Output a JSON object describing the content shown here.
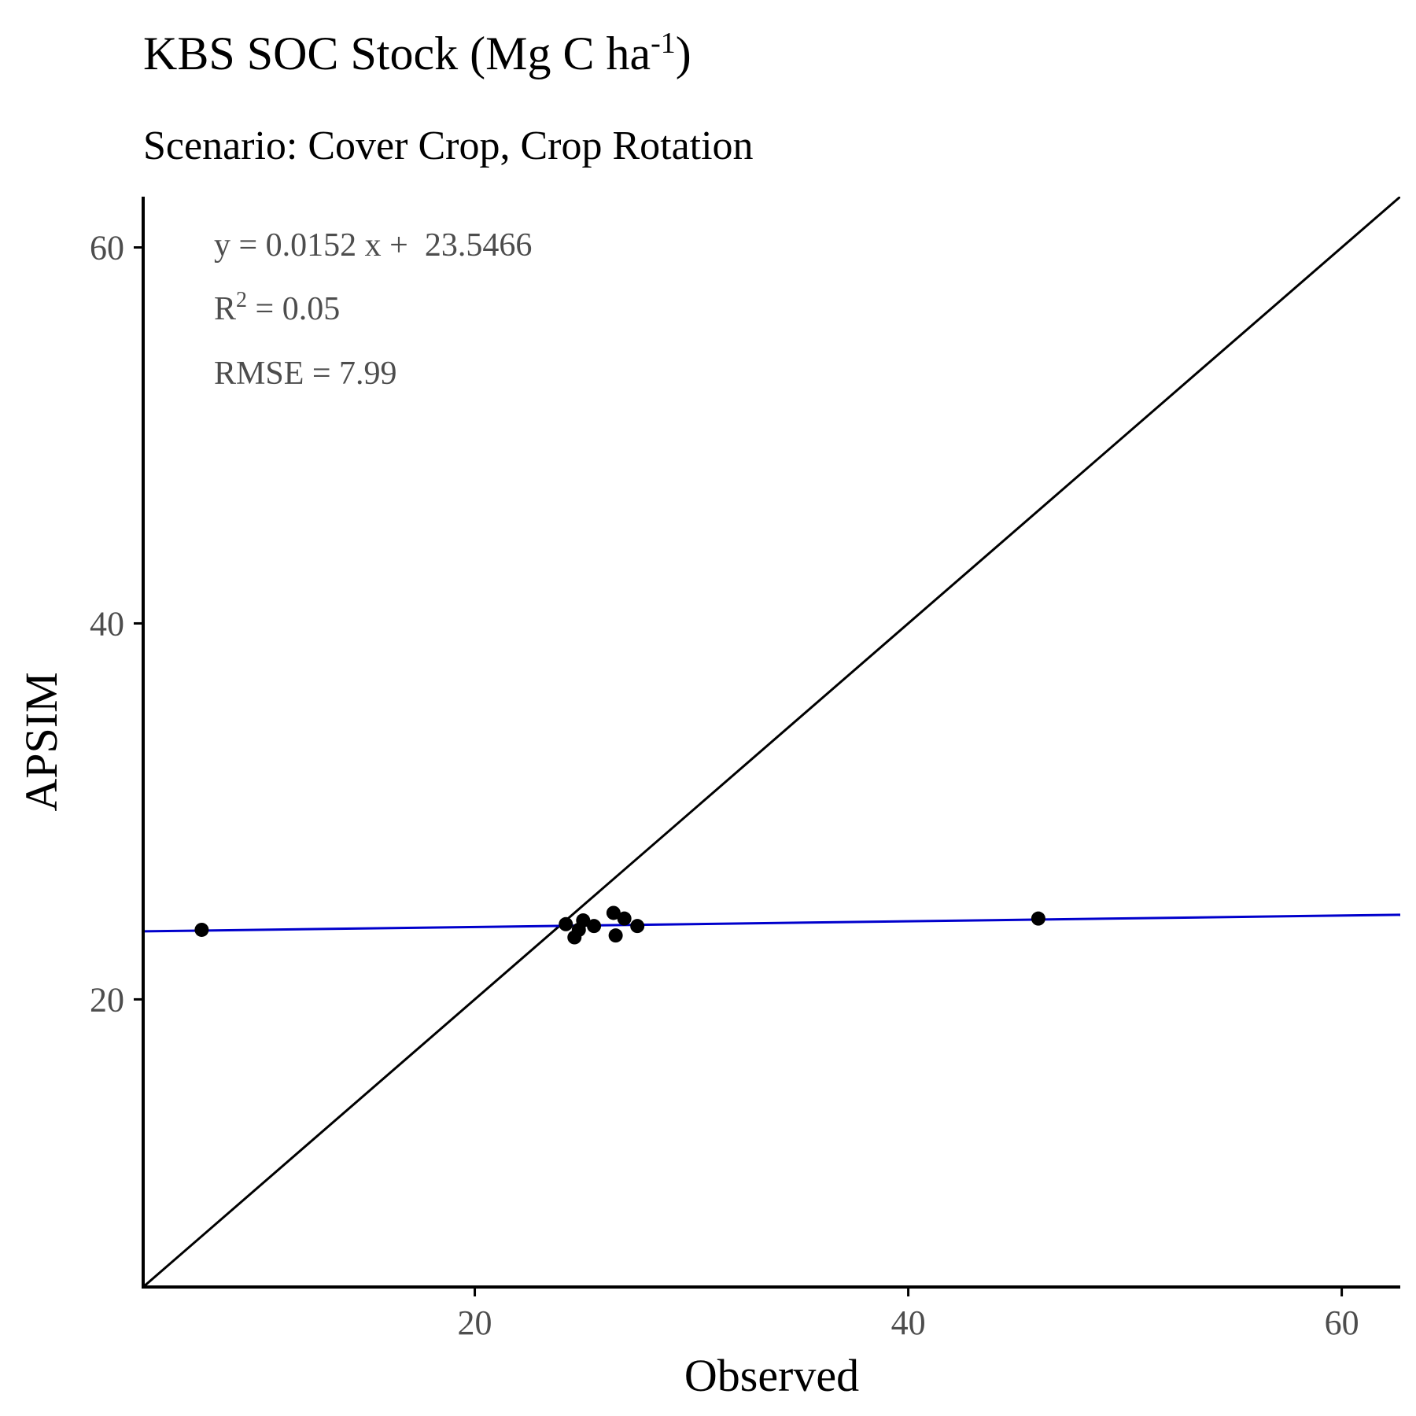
{
  "chart_data": {
    "type": "scatter",
    "title_main": "KBS SOC Stock (Mg C ha",
    "title_sup": "-1",
    "title_close": ")",
    "subtitle": "Scenario: Cover Crop, Crop Rotation",
    "xlabel": "Observed",
    "ylabel": "APSIM",
    "xlim": [
      4.7,
      62.7
    ],
    "ylim": [
      4.7,
      62.7
    ],
    "x_ticks": [
      20,
      40,
      60
    ],
    "y_ticks": [
      20,
      40,
      60
    ],
    "x_tick_labels": [
      "20",
      "40",
      "60"
    ],
    "y_tick_labels": [
      "20",
      "40",
      "60"
    ],
    "grid": false,
    "legend": "none",
    "points": [
      {
        "x": 7.4,
        "y": 23.7
      },
      {
        "x": 24.2,
        "y": 24.0
      },
      {
        "x": 24.6,
        "y": 23.3
      },
      {
        "x": 24.8,
        "y": 23.7
      },
      {
        "x": 25.0,
        "y": 24.2
      },
      {
        "x": 25.5,
        "y": 23.9
      },
      {
        "x": 26.4,
        "y": 24.6
      },
      {
        "x": 26.5,
        "y": 23.4
      },
      {
        "x": 26.9,
        "y": 24.3
      },
      {
        "x": 27.5,
        "y": 23.9
      },
      {
        "x": 46.0,
        "y": 24.3
      }
    ],
    "regression": {
      "slope": 0.0152,
      "intercept": 23.5466,
      "color": "#0000CC"
    },
    "identity_line": {
      "color": "#000000"
    },
    "annotations": {
      "equation": "y = 0.0152 x +  23.5466",
      "r2_prefix": "R",
      "r2_sup": "2",
      "r2_value": " = 0.05",
      "rmse": "RMSE = 7.99"
    },
    "colors": {
      "points": "#000000",
      "axis": "#000000",
      "tick_label": "#4D4D4D",
      "annotation": "#4D4D4D"
    }
  }
}
